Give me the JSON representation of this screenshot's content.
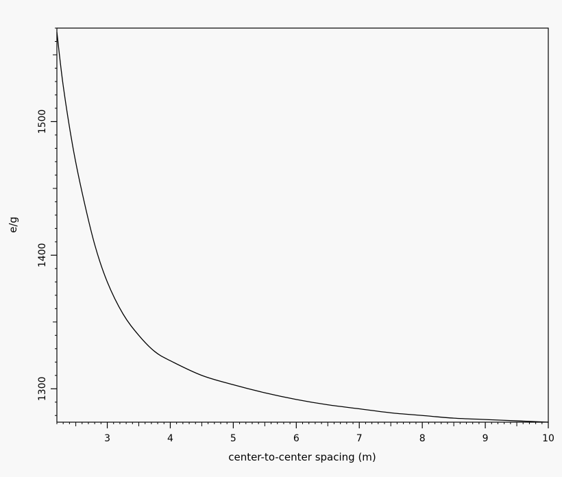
{
  "chart_data": {
    "type": "line",
    "title": "",
    "xlabel": "center-to-center spacing (m)",
    "ylabel": "e/g",
    "xlim": [
      2.2,
      10
    ],
    "ylim": [
      1275,
      1570
    ],
    "x_ticks": [
      3,
      4,
      5,
      6,
      7,
      8,
      9,
      10
    ],
    "x_tick_labels": [
      "3",
      "4",
      "5",
      "6",
      "7",
      "8",
      "9",
      "10"
    ],
    "y_ticks": [
      1300,
      1400,
      1500
    ],
    "y_tick_labels": [
      "1300",
      "1400",
      "1500"
    ],
    "grid": false,
    "legend": "none",
    "line_color": "#000000",
    "series": [
      {
        "x": [
          2.2,
          2.3,
          2.45,
          2.6,
          2.8,
          3.0,
          3.25,
          3.5,
          3.75,
          4.0,
          4.5,
          5.0,
          5.5,
          6.0,
          6.5,
          7.0,
          7.5,
          8.0,
          8.5,
          9.0,
          9.5,
          10.0
        ],
        "values": [
          1567,
          1527,
          1482,
          1447,
          1408,
          1380,
          1356,
          1340,
          1328,
          1321,
          1310,
          1303,
          1297,
          1292,
          1288,
          1285,
          1282,
          1280,
          1278,
          1277,
          1276,
          1275
        ]
      }
    ]
  }
}
